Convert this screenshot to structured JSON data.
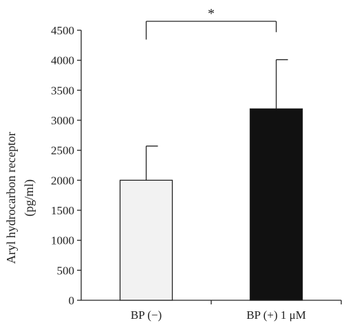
{
  "chart_data": {
    "type": "bar",
    "categories": [
      "BP (−)",
      "BP (+) 1 μM"
    ],
    "values": [
      2000,
      3190
    ],
    "errors": [
      570,
      820
    ],
    "ylabel_line1": "Aryl hydrocarbon receptor",
    "ylabel_line2": "(pg/ml)",
    "ylim": [
      0,
      4500
    ],
    "yticks": [
      0,
      500,
      1000,
      1500,
      2000,
      2500,
      3000,
      3500,
      4000,
      4500
    ],
    "bar_colors": [
      "#f2f2f2",
      "#111111"
    ],
    "significance": {
      "label": "*",
      "between": [
        0,
        1
      ]
    },
    "grid": false
  }
}
